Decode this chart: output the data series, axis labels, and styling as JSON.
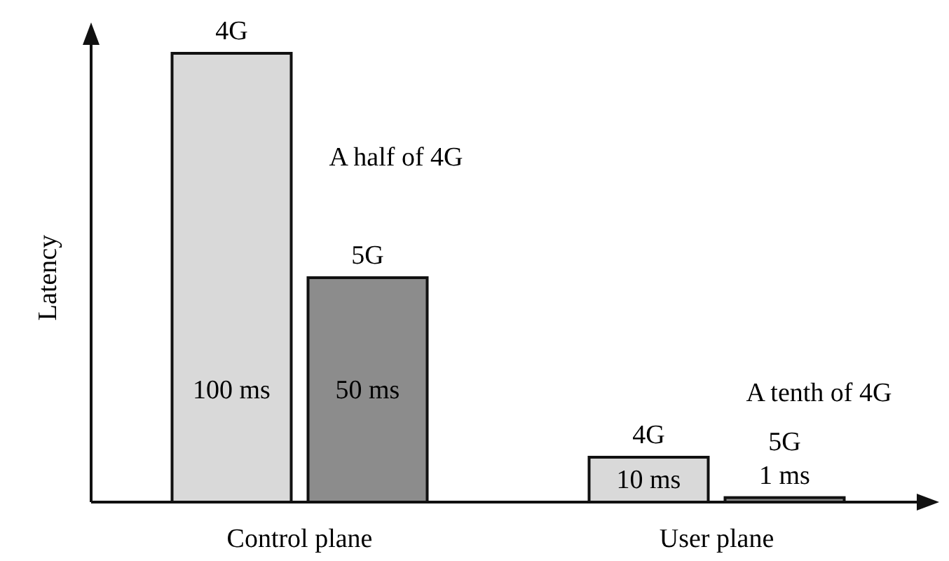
{
  "chart_data": {
    "type": "bar",
    "ylabel": "Latency",
    "categories": [
      "Control plane",
      "User plane"
    ],
    "series": [
      {
        "name": "4G",
        "color": "#d9d9d9",
        "values": [
          100,
          10
        ],
        "value_labels": [
          "100 ms",
          "10 ms"
        ]
      },
      {
        "name": "5G",
        "color": "#8c8c8c",
        "values": [
          50,
          1
        ],
        "value_labels": [
          "50 ms",
          "1 ms"
        ]
      }
    ],
    "annotations": [
      "A half of 4G",
      "A tenth of 4G"
    ]
  }
}
